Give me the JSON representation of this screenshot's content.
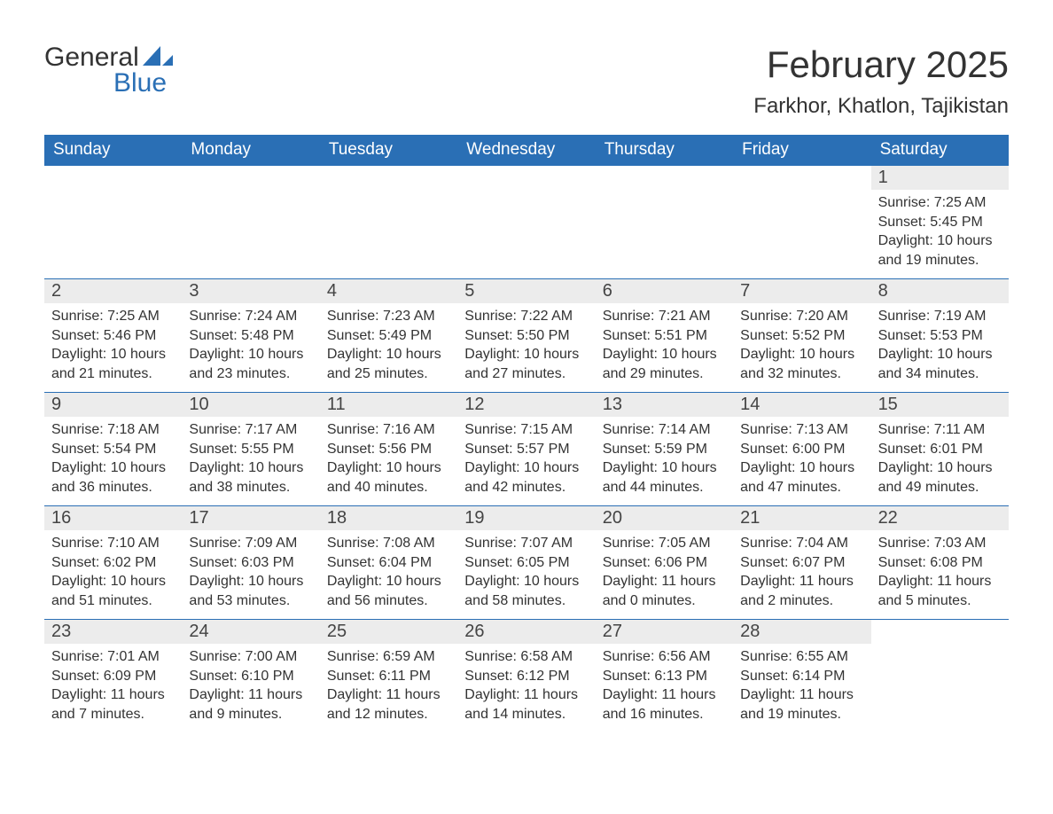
{
  "logo": {
    "top": "General",
    "bottom": "Blue"
  },
  "title": {
    "month_year": "February 2025",
    "location": "Farkhor, Khatlon, Tajikistan"
  },
  "colors": {
    "header_bg": "#2a6fb5",
    "header_text": "#ffffff",
    "day_header_bg": "#ececec",
    "row_border": "#2a6fb5",
    "body_text": "#333333",
    "logo_blue": "#2a6fb5"
  },
  "day_headers": [
    "Sunday",
    "Monday",
    "Tuesday",
    "Wednesday",
    "Thursday",
    "Friday",
    "Saturday"
  ],
  "weeks": [
    [
      {
        "day": "",
        "sunrise": "",
        "sunset": "",
        "daylight": ""
      },
      {
        "day": "",
        "sunrise": "",
        "sunset": "",
        "daylight": ""
      },
      {
        "day": "",
        "sunrise": "",
        "sunset": "",
        "daylight": ""
      },
      {
        "day": "",
        "sunrise": "",
        "sunset": "",
        "daylight": ""
      },
      {
        "day": "",
        "sunrise": "",
        "sunset": "",
        "daylight": ""
      },
      {
        "day": "",
        "sunrise": "",
        "sunset": "",
        "daylight": ""
      },
      {
        "day": "1",
        "sunrise": "Sunrise: 7:25 AM",
        "sunset": "Sunset: 5:45 PM",
        "daylight": "Daylight: 10 hours and 19 minutes."
      }
    ],
    [
      {
        "day": "2",
        "sunrise": "Sunrise: 7:25 AM",
        "sunset": "Sunset: 5:46 PM",
        "daylight": "Daylight: 10 hours and 21 minutes."
      },
      {
        "day": "3",
        "sunrise": "Sunrise: 7:24 AM",
        "sunset": "Sunset: 5:48 PM",
        "daylight": "Daylight: 10 hours and 23 minutes."
      },
      {
        "day": "4",
        "sunrise": "Sunrise: 7:23 AM",
        "sunset": "Sunset: 5:49 PM",
        "daylight": "Daylight: 10 hours and 25 minutes."
      },
      {
        "day": "5",
        "sunrise": "Sunrise: 7:22 AM",
        "sunset": "Sunset: 5:50 PM",
        "daylight": "Daylight: 10 hours and 27 minutes."
      },
      {
        "day": "6",
        "sunrise": "Sunrise: 7:21 AM",
        "sunset": "Sunset: 5:51 PM",
        "daylight": "Daylight: 10 hours and 29 minutes."
      },
      {
        "day": "7",
        "sunrise": "Sunrise: 7:20 AM",
        "sunset": "Sunset: 5:52 PM",
        "daylight": "Daylight: 10 hours and 32 minutes."
      },
      {
        "day": "8",
        "sunrise": "Sunrise: 7:19 AM",
        "sunset": "Sunset: 5:53 PM",
        "daylight": "Daylight: 10 hours and 34 minutes."
      }
    ],
    [
      {
        "day": "9",
        "sunrise": "Sunrise: 7:18 AM",
        "sunset": "Sunset: 5:54 PM",
        "daylight": "Daylight: 10 hours and 36 minutes."
      },
      {
        "day": "10",
        "sunrise": "Sunrise: 7:17 AM",
        "sunset": "Sunset: 5:55 PM",
        "daylight": "Daylight: 10 hours and 38 minutes."
      },
      {
        "day": "11",
        "sunrise": "Sunrise: 7:16 AM",
        "sunset": "Sunset: 5:56 PM",
        "daylight": "Daylight: 10 hours and 40 minutes."
      },
      {
        "day": "12",
        "sunrise": "Sunrise: 7:15 AM",
        "sunset": "Sunset: 5:57 PM",
        "daylight": "Daylight: 10 hours and 42 minutes."
      },
      {
        "day": "13",
        "sunrise": "Sunrise: 7:14 AM",
        "sunset": "Sunset: 5:59 PM",
        "daylight": "Daylight: 10 hours and 44 minutes."
      },
      {
        "day": "14",
        "sunrise": "Sunrise: 7:13 AM",
        "sunset": "Sunset: 6:00 PM",
        "daylight": "Daylight: 10 hours and 47 minutes."
      },
      {
        "day": "15",
        "sunrise": "Sunrise: 7:11 AM",
        "sunset": "Sunset: 6:01 PM",
        "daylight": "Daylight: 10 hours and 49 minutes."
      }
    ],
    [
      {
        "day": "16",
        "sunrise": "Sunrise: 7:10 AM",
        "sunset": "Sunset: 6:02 PM",
        "daylight": "Daylight: 10 hours and 51 minutes."
      },
      {
        "day": "17",
        "sunrise": "Sunrise: 7:09 AM",
        "sunset": "Sunset: 6:03 PM",
        "daylight": "Daylight: 10 hours and 53 minutes."
      },
      {
        "day": "18",
        "sunrise": "Sunrise: 7:08 AM",
        "sunset": "Sunset: 6:04 PM",
        "daylight": "Daylight: 10 hours and 56 minutes."
      },
      {
        "day": "19",
        "sunrise": "Sunrise: 7:07 AM",
        "sunset": "Sunset: 6:05 PM",
        "daylight": "Daylight: 10 hours and 58 minutes."
      },
      {
        "day": "20",
        "sunrise": "Sunrise: 7:05 AM",
        "sunset": "Sunset: 6:06 PM",
        "daylight": "Daylight: 11 hours and 0 minutes."
      },
      {
        "day": "21",
        "sunrise": "Sunrise: 7:04 AM",
        "sunset": "Sunset: 6:07 PM",
        "daylight": "Daylight: 11 hours and 2 minutes."
      },
      {
        "day": "22",
        "sunrise": "Sunrise: 7:03 AM",
        "sunset": "Sunset: 6:08 PM",
        "daylight": "Daylight: 11 hours and 5 minutes."
      }
    ],
    [
      {
        "day": "23",
        "sunrise": "Sunrise: 7:01 AM",
        "sunset": "Sunset: 6:09 PM",
        "daylight": "Daylight: 11 hours and 7 minutes."
      },
      {
        "day": "24",
        "sunrise": "Sunrise: 7:00 AM",
        "sunset": "Sunset: 6:10 PM",
        "daylight": "Daylight: 11 hours and 9 minutes."
      },
      {
        "day": "25",
        "sunrise": "Sunrise: 6:59 AM",
        "sunset": "Sunset: 6:11 PM",
        "daylight": "Daylight: 11 hours and 12 minutes."
      },
      {
        "day": "26",
        "sunrise": "Sunrise: 6:58 AM",
        "sunset": "Sunset: 6:12 PM",
        "daylight": "Daylight: 11 hours and 14 minutes."
      },
      {
        "day": "27",
        "sunrise": "Sunrise: 6:56 AM",
        "sunset": "Sunset: 6:13 PM",
        "daylight": "Daylight: 11 hours and 16 minutes."
      },
      {
        "day": "28",
        "sunrise": "Sunrise: 6:55 AM",
        "sunset": "Sunset: 6:14 PM",
        "daylight": "Daylight: 11 hours and 19 minutes."
      },
      {
        "day": "",
        "sunrise": "",
        "sunset": "",
        "daylight": ""
      }
    ]
  ]
}
